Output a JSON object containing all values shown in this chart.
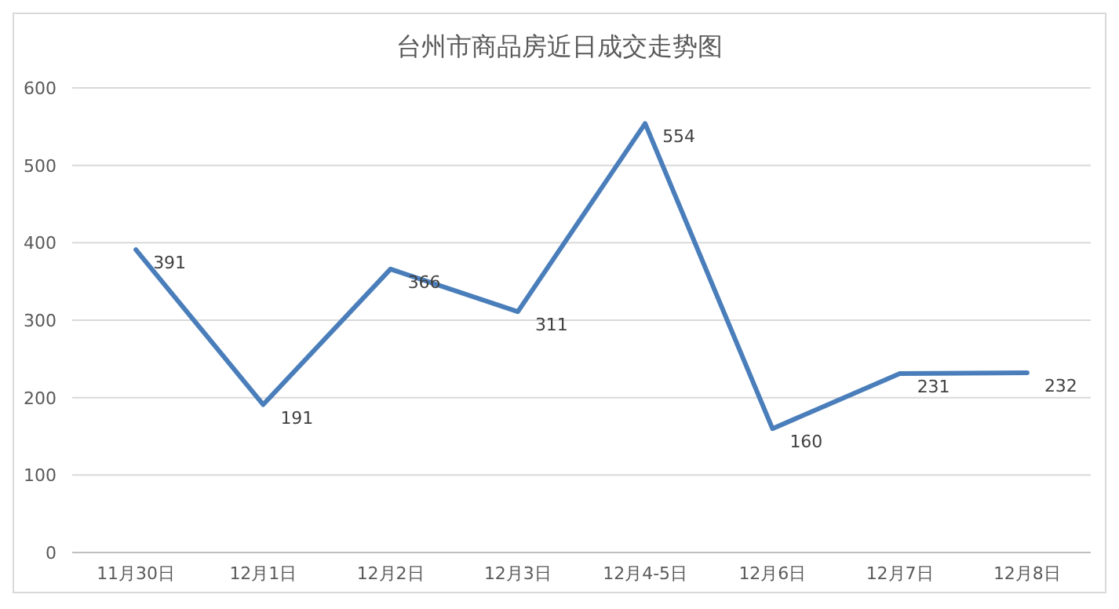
{
  "chart_data": {
    "type": "line",
    "title": "台州市商品房近日成交走势图",
    "categories": [
      "11月30日",
      "12月1日",
      "12月2日",
      "12月3日",
      "12月4-5日",
      "12月6日",
      "12月7日",
      "12月8日"
    ],
    "series": [
      {
        "color": "#4a7ebb",
        "values": [
          391,
          191,
          366,
          311,
          554,
          160,
          231,
          232
        ]
      }
    ],
    "ylim": [
      0,
      600
    ],
    "yticks": [
      0,
      100,
      200,
      300,
      400,
      500,
      600
    ],
    "grid": "y",
    "data_labels": true,
    "marker": "none",
    "line_style": "solid"
  }
}
